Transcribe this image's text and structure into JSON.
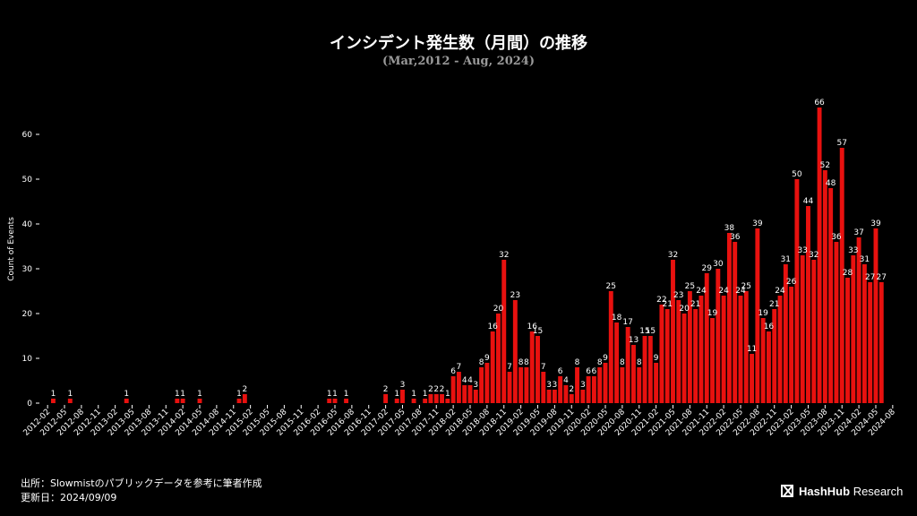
{
  "header": {
    "title": "インシデント発生数（月間）の推移",
    "subtitle": "(Mar,2012 - Aug, 2024)"
  },
  "footer": {
    "source": "出所：Slowmistのパブリックデータを参考に筆者作成",
    "updated": "更新日：2024/09/09"
  },
  "brand": {
    "hash": "Hash",
    "hub": "Hub",
    "research": " Research"
  },
  "colors": {
    "bar": "#e8110f",
    "background": "#000000",
    "label": "#ffffff"
  },
  "chart_data": {
    "type": "bar",
    "title": "インシデント発生数（月間）の推移",
    "subtitle": "(Mar,2012 - Aug, 2024)",
    "xlabel": "",
    "ylabel": "Count of Events",
    "ylim": [
      0,
      66
    ],
    "yticks": [
      0,
      10,
      20,
      30,
      40,
      50,
      60
    ],
    "x_start": "2012-02",
    "x_end": "2024-08",
    "x_tick_every_months": 3,
    "values": [
      [
        "2012-03",
        1
      ],
      [
        "2012-06",
        1
      ],
      [
        "2013-04",
        1
      ],
      [
        "2014-01",
        1
      ],
      [
        "2014-02",
        1
      ],
      [
        "2014-05",
        1
      ],
      [
        "2014-12",
        1
      ],
      [
        "2015-01",
        2
      ],
      [
        "2016-04",
        1
      ],
      [
        "2016-05",
        1
      ],
      [
        "2016-07",
        1
      ],
      [
        "2017-02",
        2
      ],
      [
        "2017-04",
        1
      ],
      [
        "2017-05",
        3
      ],
      [
        "2017-07",
        1
      ],
      [
        "2017-09",
        1
      ],
      [
        "2017-10",
        2
      ],
      [
        "2017-11",
        2
      ],
      [
        "2017-12",
        2
      ],
      [
        "2018-01",
        1
      ],
      [
        "2018-02",
        6
      ],
      [
        "2018-03",
        7
      ],
      [
        "2018-04",
        4
      ],
      [
        "2018-05",
        4
      ],
      [
        "2018-06",
        3
      ],
      [
        "2018-07",
        8
      ],
      [
        "2018-08",
        9
      ],
      [
        "2018-09",
        16
      ],
      [
        "2018-10",
        20
      ],
      [
        "2018-11",
        32
      ],
      [
        "2018-12",
        7
      ],
      [
        "2019-01",
        23
      ],
      [
        "2019-02",
        8
      ],
      [
        "2019-03",
        8
      ],
      [
        "2019-04",
        16
      ],
      [
        "2019-05",
        15
      ],
      [
        "2019-06",
        7
      ],
      [
        "2019-07",
        3
      ],
      [
        "2019-08",
        3
      ],
      [
        "2019-09",
        6
      ],
      [
        "2019-10",
        4
      ],
      [
        "2019-11",
        2
      ],
      [
        "2019-12",
        8
      ],
      [
        "2020-01",
        3
      ],
      [
        "2020-02",
        6
      ],
      [
        "2020-03",
        6
      ],
      [
        "2020-04",
        8
      ],
      [
        "2020-05",
        9
      ],
      [
        "2020-06",
        25
      ],
      [
        "2020-07",
        18
      ],
      [
        "2020-08",
        8
      ],
      [
        "2020-09",
        17
      ],
      [
        "2020-10",
        13
      ],
      [
        "2020-11",
        8
      ],
      [
        "2020-12",
        15
      ],
      [
        "2021-01",
        15
      ],
      [
        "2021-02",
        9
      ],
      [
        "2021-03",
        22
      ],
      [
        "2021-04",
        21
      ],
      [
        "2021-05",
        32
      ],
      [
        "2021-06",
        23
      ],
      [
        "2021-07",
        20
      ],
      [
        "2021-08",
        25
      ],
      [
        "2021-09",
        21
      ],
      [
        "2021-10",
        24
      ],
      [
        "2021-11",
        29
      ],
      [
        "2021-12",
        19
      ],
      [
        "2022-01",
        30
      ],
      [
        "2022-02",
        24
      ],
      [
        "2022-03",
        38
      ],
      [
        "2022-04",
        36
      ],
      [
        "2022-05",
        24
      ],
      [
        "2022-06",
        25
      ],
      [
        "2022-07",
        11
      ],
      [
        "2022-08",
        39
      ],
      [
        "2022-09",
        19
      ],
      [
        "2022-10",
        16
      ],
      [
        "2022-11",
        21
      ],
      [
        "2022-12",
        24
      ],
      [
        "2023-01",
        31
      ],
      [
        "2023-02",
        26
      ],
      [
        "2023-03",
        50
      ],
      [
        "2023-04",
        33
      ],
      [
        "2023-05",
        44
      ],
      [
        "2023-06",
        32
      ],
      [
        "2023-07",
        66
      ],
      [
        "2023-08",
        52
      ],
      [
        "2023-09",
        48
      ],
      [
        "2023-10",
        36
      ],
      [
        "2023-11",
        57
      ],
      [
        "2023-12",
        28
      ],
      [
        "2024-01",
        33
      ],
      [
        "2024-02",
        37
      ],
      [
        "2024-03",
        31
      ],
      [
        "2024-04",
        27
      ],
      [
        "2024-05",
        39
      ],
      [
        "2024-06",
        27
      ]
    ]
  }
}
